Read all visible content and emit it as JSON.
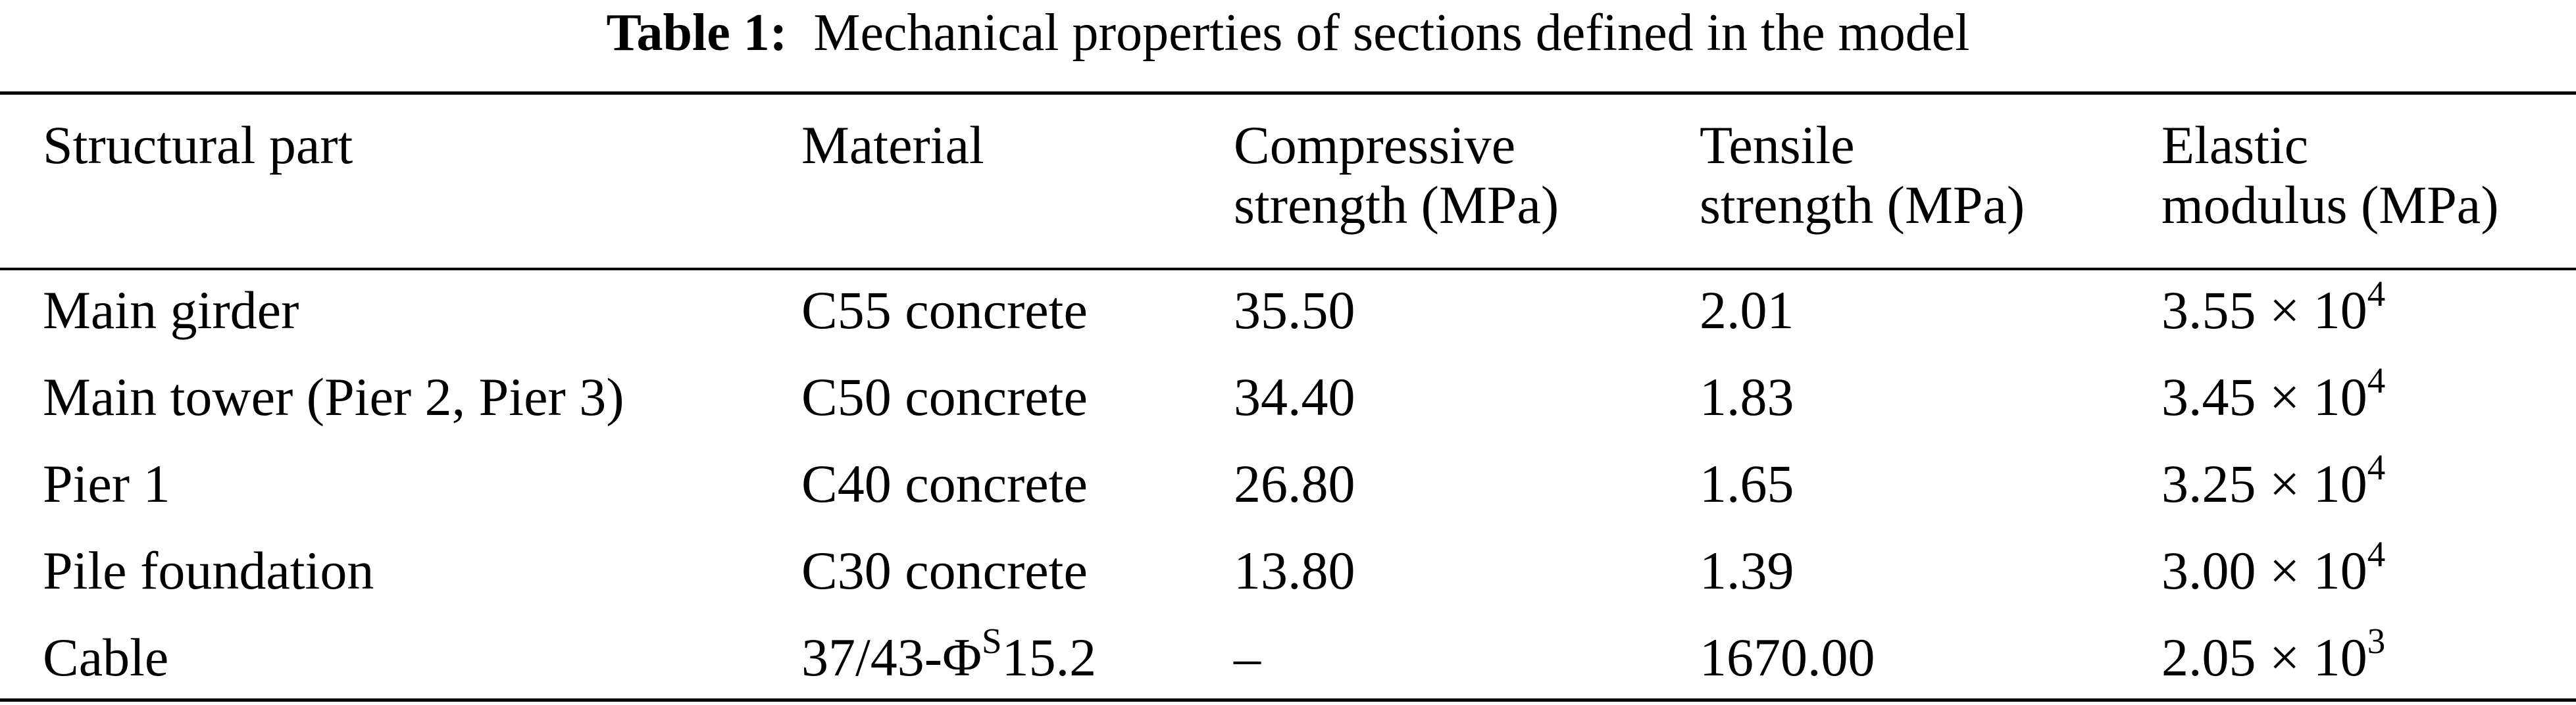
{
  "caption": {
    "label": "Table 1:",
    "text": "Mechanical properties of sections defined in the model"
  },
  "table": {
    "headers": [
      {
        "line1": "Structural part",
        "line2": ""
      },
      {
        "line1": "Material",
        "line2": ""
      },
      {
        "line1": "Compressive",
        "line2": "strength (MPa)"
      },
      {
        "line1": "Tensile",
        "line2": "strength (MPa)"
      },
      {
        "line1": "Elastic",
        "line2": "modulus (MPa)"
      }
    ],
    "rows": [
      {
        "part": "Main girder",
        "material": {
          "base": "C55 concrete",
          "sup": "",
          "tail": ""
        },
        "compressive": "35.50",
        "tensile": "2.01",
        "modulus": {
          "base": "3.55 × 10",
          "exp": "4"
        }
      },
      {
        "part": "Main tower (Pier 2, Pier 3)",
        "material": {
          "base": "C50 concrete",
          "sup": "",
          "tail": ""
        },
        "compressive": "34.40",
        "tensile": "1.83",
        "modulus": {
          "base": "3.45 × 10",
          "exp": "4"
        }
      },
      {
        "part": "Pier 1",
        "material": {
          "base": "C40 concrete",
          "sup": "",
          "tail": ""
        },
        "compressive": "26.80",
        "tensile": "1.65",
        "modulus": {
          "base": "3.25 × 10",
          "exp": "4"
        }
      },
      {
        "part": "Pile foundation",
        "material": {
          "base": "C30 concrete",
          "sup": "",
          "tail": ""
        },
        "compressive": "13.80",
        "tensile": "1.39",
        "modulus": {
          "base": "3.00 × 10",
          "exp": "4"
        }
      },
      {
        "part": "Cable",
        "material": {
          "base": "37/43-Φ",
          "sup": "S",
          "tail": "15.2"
        },
        "compressive": "–",
        "tensile": "1670.00",
        "modulus": {
          "base": "2.05 × 10",
          "exp": "3"
        }
      }
    ]
  }
}
